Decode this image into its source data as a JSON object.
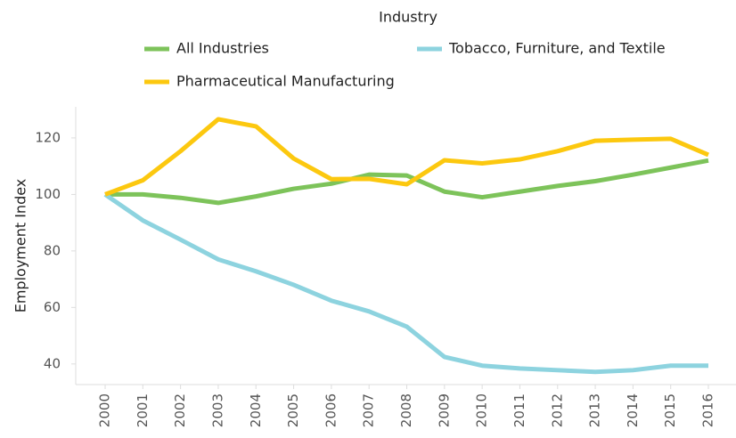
{
  "chart_data": {
    "type": "line",
    "legend_title": "Industry",
    "y_label": "Employment Index",
    "categories": [
      "2000",
      "2001",
      "2002",
      "2003",
      "2004",
      "2005",
      "2006",
      "2007",
      "2008",
      "2009",
      "2010",
      "2011",
      "2012",
      "2013",
      "2014",
      "2015",
      "2016"
    ],
    "series": [
      {
        "name": "All Industries",
        "color": "#7dc35a",
        "values": [
          100,
          100,
          98.8,
          97,
          99.3,
          102,
          103.8,
          107,
          106.7,
          101,
          99,
          101,
          103,
          104.7,
          107,
          109.5,
          112
        ]
      },
      {
        "name": "Tobacco, Furniture, and Textile",
        "color": "#8dd3df",
        "values": [
          100,
          90.8,
          84,
          77,
          72.8,
          68,
          62.4,
          58.6,
          53.2,
          42.5,
          39.4,
          38.4,
          37.8,
          37.2,
          37.8,
          39.4,
          39.4
        ]
      },
      {
        "name": "Pharmaceutical Manufacturing",
        "color": "#fcc80f",
        "values": [
          100,
          105,
          115.3,
          126.6,
          124.1,
          112.7,
          105.4,
          105.5,
          103.6,
          112.1,
          111,
          112.4,
          115.3,
          119,
          119.4,
          119.7,
          114
        ]
      }
    ],
    "ylim": [
      32.7,
      131
    ],
    "yticks": [
      40,
      60,
      80,
      100,
      120
    ]
  }
}
